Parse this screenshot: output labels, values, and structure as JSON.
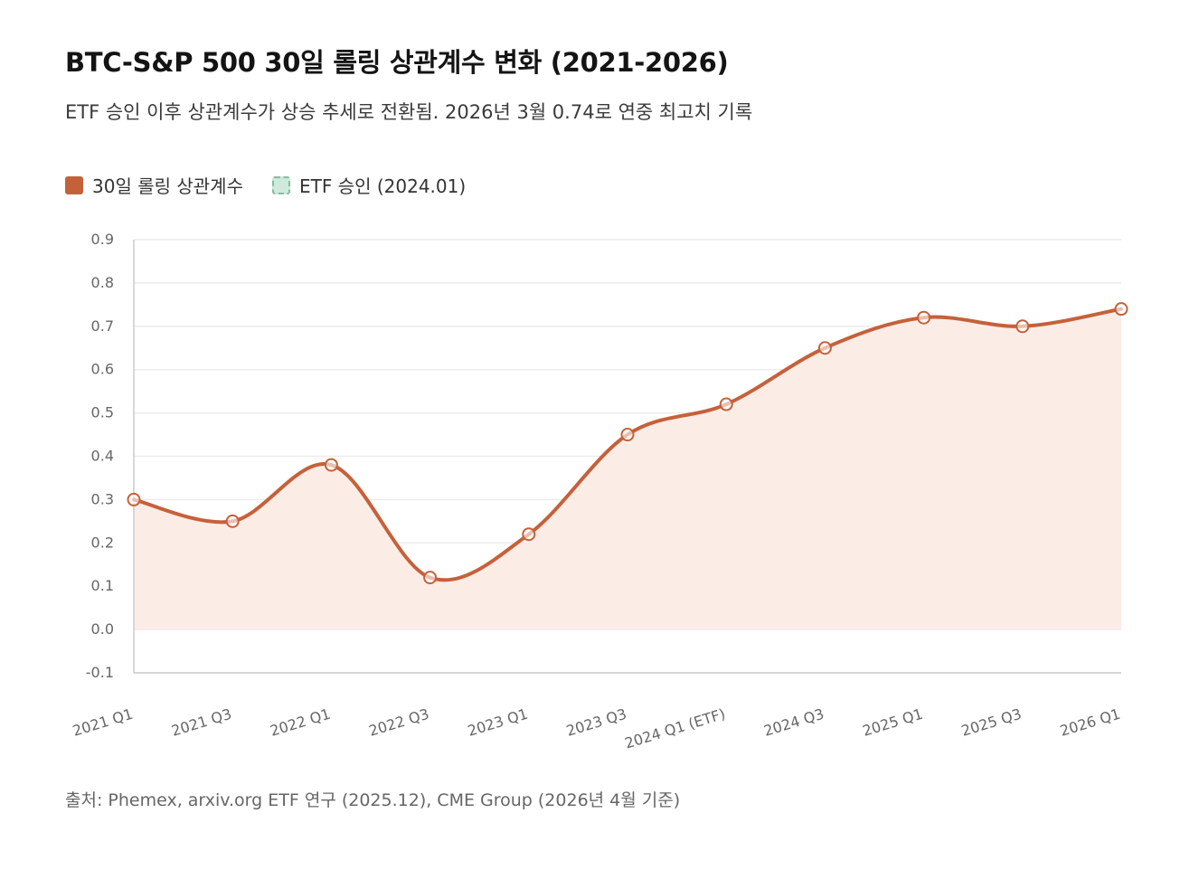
{
  "header": {
    "title": "BTC-S&P 500 30일 롤링 상관계수 변화 (2021-2026)",
    "subtitle": "ETF 승인 이후 상관계수가 상승 추세로 전환됨. 2026년 3월 0.74로 연중 최고치 기록"
  },
  "legend": {
    "series_label": "30일 롤링 상관계수",
    "etf_label": "ETF 승인 (2024.01)"
  },
  "source": "출처: Phemex, arxiv.org ETF 연구 (2025.12), CME Group (2026년 4월 기준)",
  "colors": {
    "line": "#c5613a",
    "area": "#fbece6",
    "grid": "#ececec",
    "axis": "#cccccc",
    "etf_swatch": "#cfe9dc"
  },
  "chart_data": {
    "type": "line",
    "categories": [
      "2021 Q1",
      "2021 Q3",
      "2022 Q1",
      "2022 Q3",
      "2023 Q1",
      "2023 Q3",
      "2024 Q1 (ETF)",
      "2024 Q3",
      "2025 Q1",
      "2025 Q3",
      "2026 Q1"
    ],
    "series": [
      {
        "name": "30일 롤링 상관계수",
        "values": [
          0.3,
          0.25,
          0.38,
          0.12,
          0.22,
          0.45,
          0.52,
          0.65,
          0.72,
          0.7,
          0.74
        ]
      }
    ],
    "ylim": [
      -0.1,
      0.9
    ],
    "yticks": [
      "-0.1",
      "0.0",
      "0.1",
      "0.2",
      "0.3",
      "0.4",
      "0.5",
      "0.6",
      "0.7",
      "0.8",
      "0.9"
    ],
    "grid": true,
    "legend_position": "top-left",
    "area_fill": true,
    "smooth": true
  }
}
